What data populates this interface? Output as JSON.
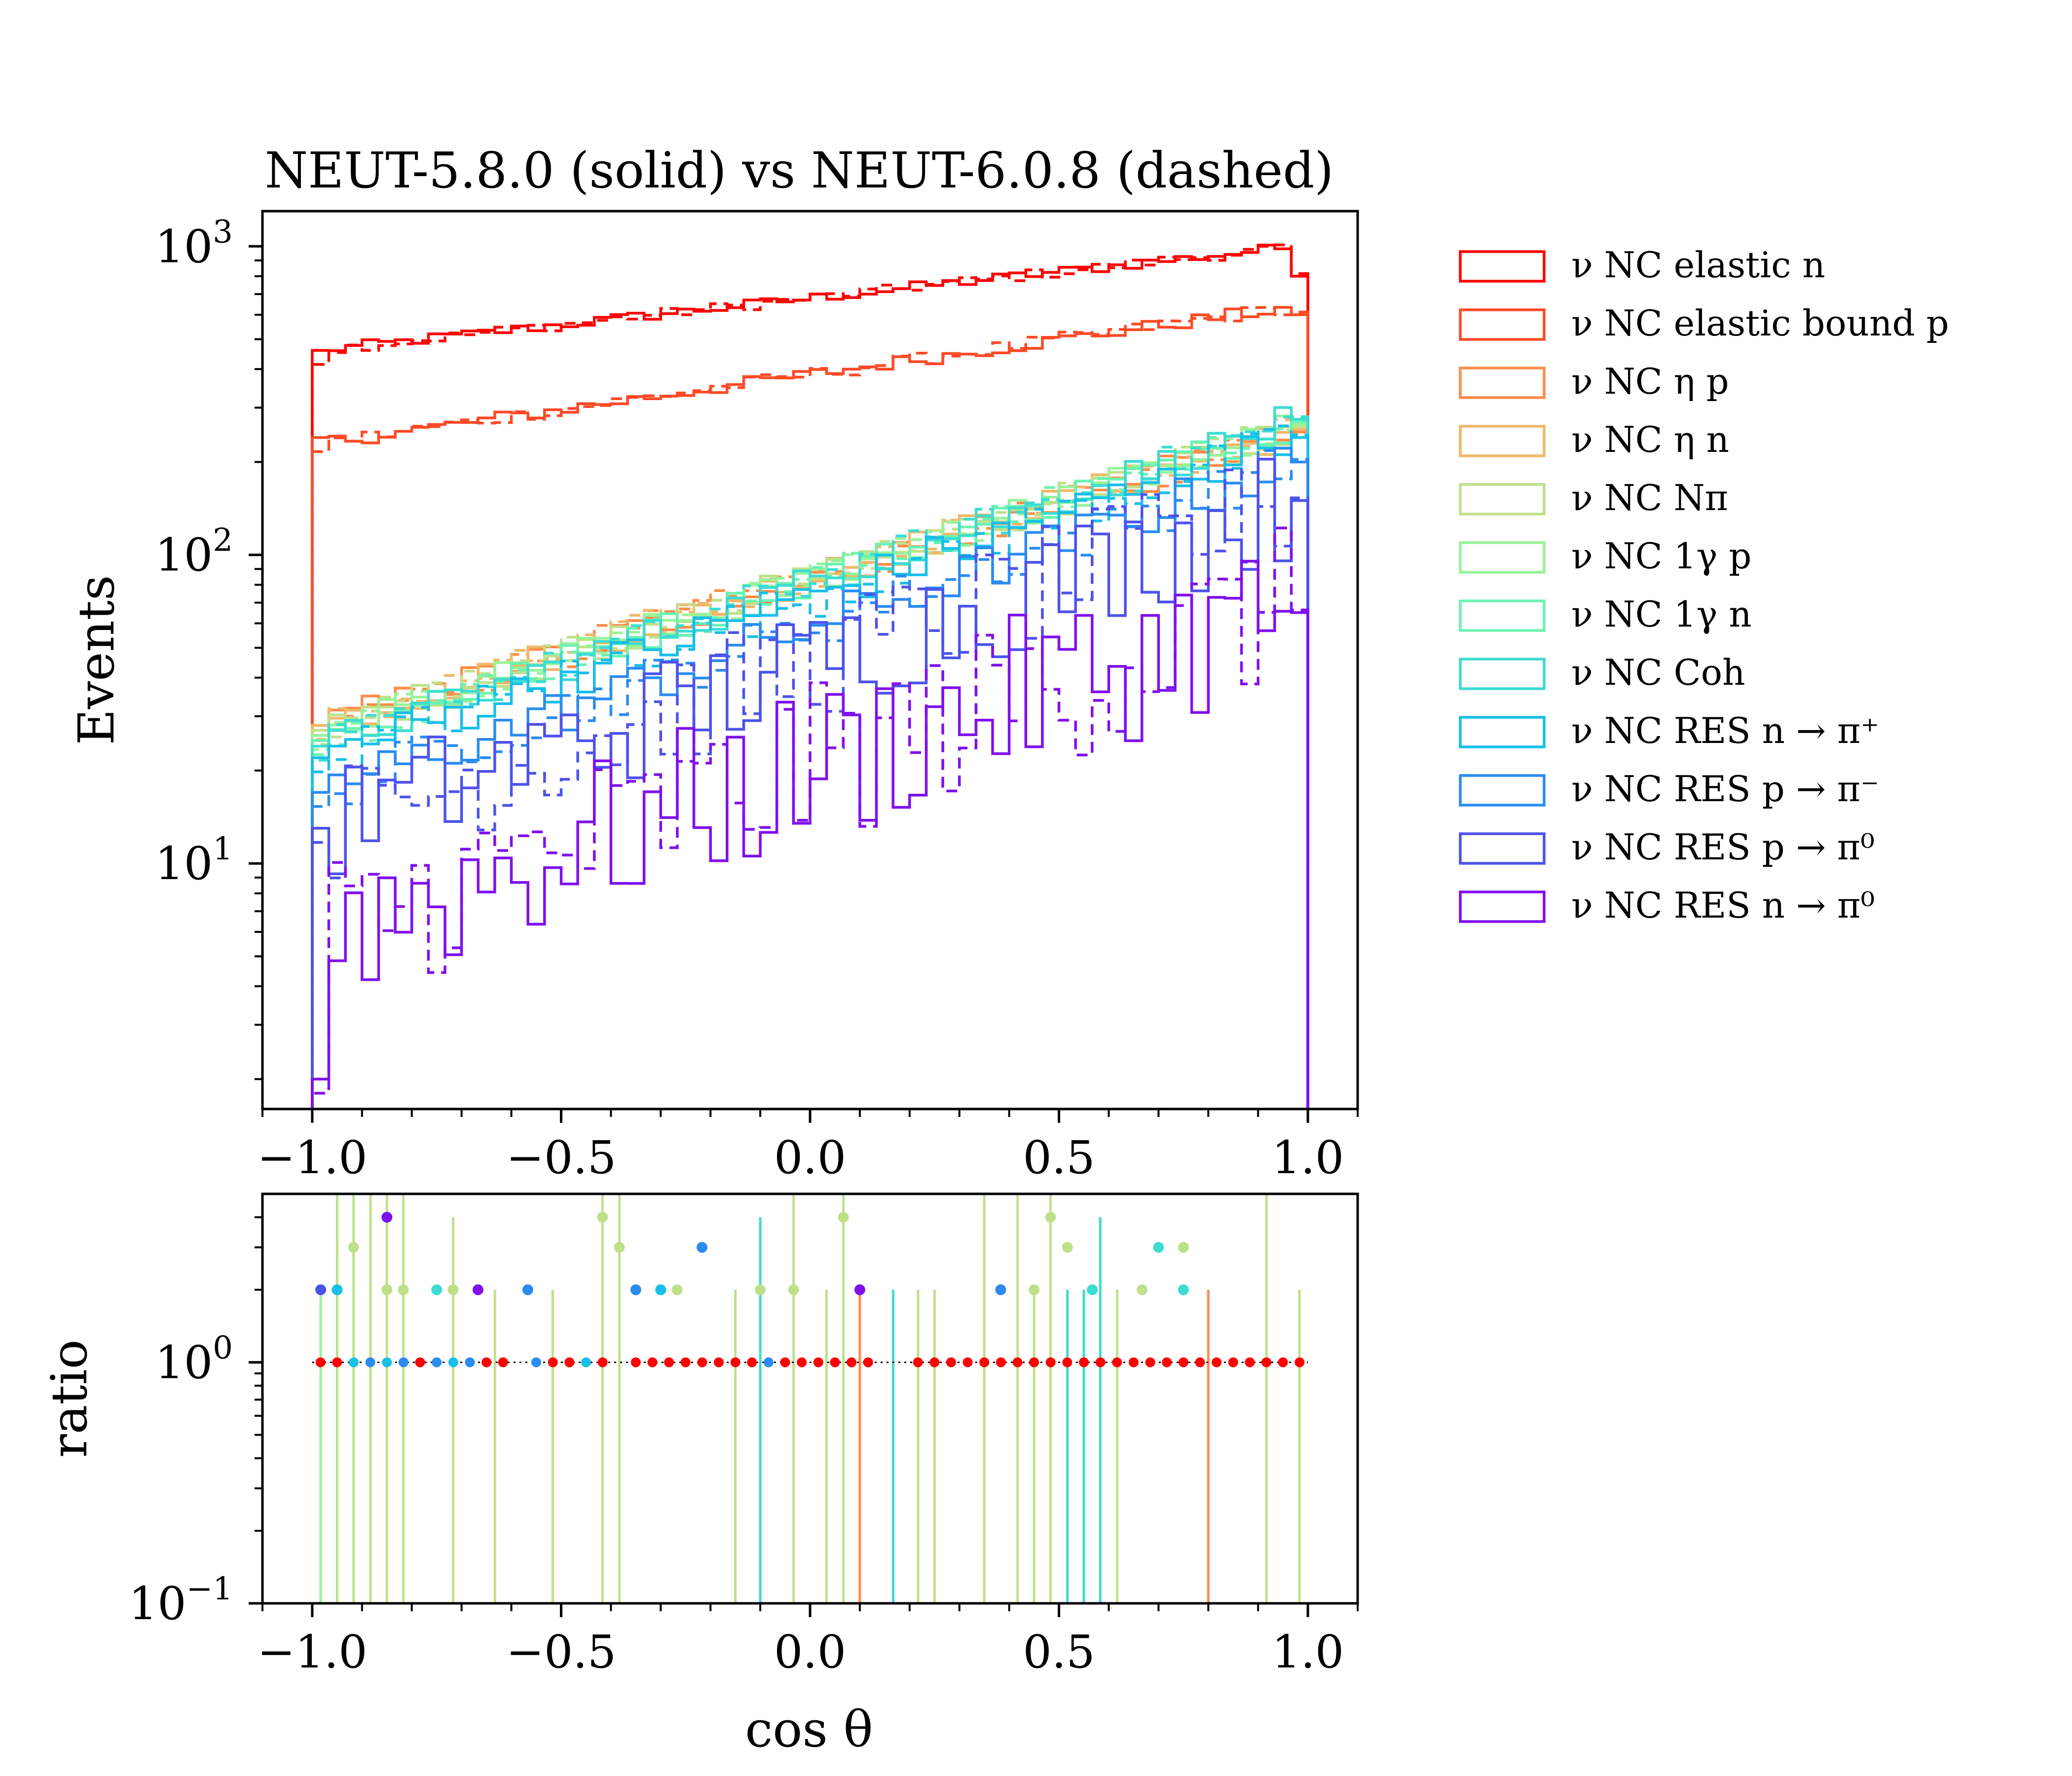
{
  "title": "NEUT-5.8.0 (solid) vs NEUT-6.0.8 (dashed)",
  "main_panel": {
    "ylabel": "Events",
    "xticks": [
      "−1.0",
      "−0.5",
      "0.0",
      "0.5",
      "1.0"
    ],
    "yticks": [
      {
        "base": "10",
        "exp": "1",
        "value": 10
      },
      {
        "base": "10",
        "exp": "2",
        "value": 100
      },
      {
        "base": "10",
        "exp": "3",
        "value": 1000
      }
    ]
  },
  "ratio_panel": {
    "ylabel": "ratio",
    "xlabel": "cos θ",
    "xticks": [
      "−1.0",
      "−0.5",
      "0.0",
      "0.5",
      "1.0"
    ],
    "yticks": [
      {
        "base": "10",
        "exp": "−1",
        "value": 0.1
      },
      {
        "base": "10",
        "exp": "0",
        "value": 1
      }
    ]
  },
  "legend": [
    {
      "label": "ν NC elastic n",
      "color": "#ff0000"
    },
    {
      "label": "ν NC elastic bound p",
      "color": "#ff4a26"
    },
    {
      "label": "ν NC η p",
      "color": "#ff8c47"
    },
    {
      "label": "ν NC η n",
      "color": "#f0b868"
    },
    {
      "label": "ν NC Nπ",
      "color": "#bfe08a"
    },
    {
      "label": "ν NC 1γ p",
      "color": "#99f29a"
    },
    {
      "label": "ν NC 1γ n",
      "color": "#6cf2b2"
    },
    {
      "label": "ν NC Coh",
      "color": "#3ddcd2"
    },
    {
      "label": "ν NC RES n → π⁺",
      "color": "#18bfe8"
    },
    {
      "label": "ν NC RES p → π⁻",
      "color": "#2a8cf0"
    },
    {
      "label": "ν NC RES p → π⁰",
      "color": "#4d52ec"
    },
    {
      "label": "ν NC RES n → π⁰",
      "color": "#8010ee"
    }
  ],
  "chart_data": [
    {
      "type": "line",
      "title": "NEUT-5.8.0 (solid) vs NEUT-6.0.8 (dashed)",
      "ylabel": "Events",
      "xlim": [
        -1.1,
        1.1
      ],
      "ylim": [
        1.6,
        1300
      ],
      "yscale": "log",
      "x_bin_edges_from": -1.0,
      "x_bin_edges_to": 1.0,
      "n_bins": 60,
      "series": [
        {
          "name": "ν NC elastic n",
          "color": "#ff0000",
          "start": 460,
          "end": 1000,
          "first_bin": 460,
          "last_bin": 800,
          "jitter": 0.04
        },
        {
          "name": "ν NC elastic bound p",
          "color": "#ff4a26",
          "start": 230,
          "end": 640,
          "first_bin": 240,
          "last_bin": 600,
          "jitter": 0.05
        },
        {
          "name": "ν NC η p",
          "color": "#ff8c47",
          "start": 28,
          "end": 250,
          "first_bin": 28,
          "last_bin": 250,
          "jitter": 0.12
        },
        {
          "name": "ν NC η n",
          "color": "#f0b868",
          "start": 28,
          "end": 255,
          "first_bin": 28,
          "last_bin": 255,
          "jitter": 0.12
        },
        {
          "name": "ν NC Nπ",
          "color": "#bfe08a",
          "start": 27,
          "end": 260,
          "first_bin": 27,
          "last_bin": 260,
          "jitter": 0.12
        },
        {
          "name": "ν NC 1γ p",
          "color": "#99f29a",
          "start": 26,
          "end": 265,
          "first_bin": 26,
          "last_bin": 265,
          "jitter": 0.12
        },
        {
          "name": "ν NC 1γ n",
          "color": "#6cf2b2",
          "start": 25,
          "end": 270,
          "first_bin": 25,
          "last_bin": 270,
          "jitter": 0.12
        },
        {
          "name": "ν NC Coh",
          "color": "#3ddcd2",
          "start": 24,
          "end": 275,
          "first_bin": 24,
          "last_bin": 275,
          "jitter": 0.13
        },
        {
          "name": "ν NC RES n → π⁺",
          "color": "#18bfe8",
          "start": 22,
          "end": 240,
          "first_bin": 22,
          "last_bin": 240,
          "jitter": 0.16
        },
        {
          "name": "ν NC RES p → π⁻",
          "color": "#2a8cf0",
          "start": 17,
          "end": 200,
          "first_bin": 17,
          "last_bin": 200,
          "jitter": 0.18
        },
        {
          "name": "ν NC RES p → π⁰",
          "color": "#4d52ec",
          "start": 13,
          "end": 150,
          "first_bin": 13,
          "last_bin": 150,
          "jitter": 0.2
        },
        {
          "name": "ν NC RES n → π⁰",
          "color": "#8010ee",
          "start": 6,
          "end": 70,
          "first_bin": 2,
          "last_bin": 65,
          "jitter": 0.28
        }
      ]
    },
    {
      "type": "scatter",
      "ylabel": "ratio",
      "xlabel": "cos θ",
      "xlim": [
        -1.1,
        1.1
      ],
      "ylim": [
        0.1,
        5
      ],
      "yscale": "log",
      "baseline": 1,
      "points": [
        {
          "x": -0.983,
          "y": 2,
          "color": "#4d52ec"
        },
        {
          "x": -0.95,
          "y": 2,
          "color": "#18bfe8"
        },
        {
          "x": -0.917,
          "y": 3,
          "color": "#bfe08a"
        },
        {
          "x": -0.85,
          "y": 4,
          "color": "#8010ee"
        },
        {
          "x": -0.85,
          "y": 2,
          "color": "#bfe08a"
        },
        {
          "x": -0.817,
          "y": 2,
          "color": "#bfe08a"
        },
        {
          "x": -0.75,
          "y": 2,
          "color": "#3ddcd2"
        },
        {
          "x": -0.717,
          "y": 2,
          "color": "#bfe08a"
        },
        {
          "x": -0.667,
          "y": 2,
          "color": "#8010ee"
        },
        {
          "x": -0.567,
          "y": 2,
          "color": "#2a8cf0"
        },
        {
          "x": -0.417,
          "y": 4,
          "color": "#bfe08a"
        },
        {
          "x": -0.383,
          "y": 3,
          "color": "#bfe08a"
        },
        {
          "x": -0.35,
          "y": 2,
          "color": "#2a8cf0"
        },
        {
          "x": -0.3,
          "y": 2,
          "color": "#18bfe8"
        },
        {
          "x": -0.267,
          "y": 2,
          "color": "#bfe08a"
        },
        {
          "x": -0.217,
          "y": 3,
          "color": "#2a8cf0"
        },
        {
          "x": -0.1,
          "y": 2,
          "color": "#bfe08a"
        },
        {
          "x": -0.033,
          "y": 2,
          "color": "#bfe08a"
        },
        {
          "x": 0.067,
          "y": 4,
          "color": "#bfe08a"
        },
        {
          "x": 0.1,
          "y": 2,
          "color": "#8010ee"
        },
        {
          "x": 0.383,
          "y": 2,
          "color": "#2a8cf0"
        },
        {
          "x": 0.45,
          "y": 2,
          "color": "#bfe08a"
        },
        {
          "x": 0.483,
          "y": 4,
          "color": "#bfe08a"
        },
        {
          "x": 0.517,
          "y": 3,
          "color": "#bfe08a"
        },
        {
          "x": 0.567,
          "y": 2,
          "color": "#3ddcd2"
        },
        {
          "x": 0.667,
          "y": 2,
          "color": "#bfe08a"
        },
        {
          "x": 0.7,
          "y": 3,
          "color": "#3ddcd2"
        },
        {
          "x": 0.75,
          "y": 3,
          "color": "#bfe08a"
        },
        {
          "x": 0.75,
          "y": 2,
          "color": "#3ddcd2"
        }
      ],
      "error_bars": [
        {
          "x": -0.983,
          "high": 2.0,
          "color": "#99f29a"
        },
        {
          "x": -0.95,
          "high": 5.0,
          "color": "#bfe08a"
        },
        {
          "x": -0.917,
          "high": 5.0,
          "color": "#bfe08a"
        },
        {
          "x": -0.883,
          "high": 5.0,
          "color": "#bfe08a"
        },
        {
          "x": -0.85,
          "high": 5.0,
          "color": "#bfe08a"
        },
        {
          "x": -0.817,
          "high": 5.0,
          "color": "#bfe08a"
        },
        {
          "x": -0.717,
          "high": 4.0,
          "color": "#bfe08a"
        },
        {
          "x": -0.633,
          "high": 2.0,
          "color": "#bfe08a"
        },
        {
          "x": -0.517,
          "high": 2.0,
          "color": "#bfe08a"
        },
        {
          "x": -0.417,
          "high": 5.0,
          "color": "#bfe08a"
        },
        {
          "x": -0.383,
          "high": 5.0,
          "color": "#bfe08a"
        },
        {
          "x": -0.15,
          "high": 2.0,
          "color": "#bfe08a"
        },
        {
          "x": -0.1,
          "high": 4.0,
          "color": "#3ddcd2"
        },
        {
          "x": -0.033,
          "high": 5.0,
          "color": "#bfe08a"
        },
        {
          "x": 0.033,
          "high": 2.0,
          "color": "#bfe08a"
        },
        {
          "x": 0.067,
          "high": 5.0,
          "color": "#bfe08a"
        },
        {
          "x": 0.1,
          "high": 2.0,
          "color": "#ff8c47"
        },
        {
          "x": 0.167,
          "high": 2.0,
          "color": "#3ddcd2"
        },
        {
          "x": 0.217,
          "high": 2.0,
          "color": "#bfe08a"
        },
        {
          "x": 0.25,
          "high": 2.0,
          "color": "#bfe08a"
        },
        {
          "x": 0.35,
          "high": 5.0,
          "color": "#bfe08a"
        },
        {
          "x": 0.417,
          "high": 5.0,
          "color": "#bfe08a"
        },
        {
          "x": 0.45,
          "high": 2.0,
          "color": "#bfe08a"
        },
        {
          "x": 0.483,
          "high": 5.0,
          "color": "#bfe08a"
        },
        {
          "x": 0.517,
          "high": 2.0,
          "color": "#3ddcd2"
        },
        {
          "x": 0.55,
          "high": 2.0,
          "color": "#3ddcd2"
        },
        {
          "x": 0.583,
          "high": 4.0,
          "color": "#3ddcd2"
        },
        {
          "x": 0.617,
          "high": 2.0,
          "color": "#bfe08a"
        },
        {
          "x": 0.8,
          "high": 2.0,
          "color": "#ff8c47"
        },
        {
          "x": 0.917,
          "high": 5.0,
          "color": "#bfe08a"
        },
        {
          "x": 0.983,
          "high": 2.0,
          "color": "#bfe08a"
        }
      ]
    }
  ]
}
